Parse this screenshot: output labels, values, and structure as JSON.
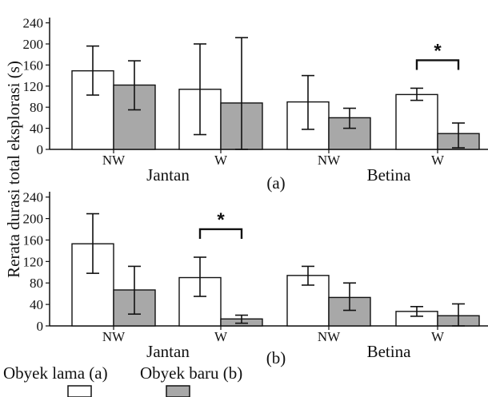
{
  "ylabel": "Rerata durasi total eksplorasi (s)",
  "legend": {
    "series_a": "Obyek lama (a)",
    "series_b": "Obyek baru (b)"
  },
  "colors": {
    "series_a": "#ffffff",
    "series_b": "#a8a8a8",
    "ink": "#111111"
  },
  "chart_data": [
    {
      "type": "bar",
      "panel_label": "(a)",
      "categories": [
        "NW",
        "W",
        "NW",
        "W"
      ],
      "groups": [
        "Jantan",
        "Betina"
      ],
      "yticks": [
        0,
        40,
        80,
        120,
        160,
        200,
        240
      ],
      "ylim": [
        0,
        250
      ],
      "series": [
        {
          "name": "Obyek lama (a)",
          "values": [
            149,
            114,
            90,
            104
          ],
          "err_low": [
            103,
            28,
            38,
            93
          ],
          "err_high": [
            196,
            200,
            140,
            116
          ]
        },
        {
          "name": "Obyek baru (b)",
          "values": [
            122,
            88,
            60,
            30
          ],
          "err_low": [
            75,
            0,
            40,
            3
          ],
          "err_high": [
            168,
            212,
            78,
            50
          ]
        }
      ],
      "significance": [
        {
          "category_index": 3,
          "label": "*"
        }
      ]
    },
    {
      "type": "bar",
      "panel_label": "(b)",
      "categories": [
        "NW",
        "W",
        "NW",
        "W"
      ],
      "groups": [
        "Jantan",
        "Betina"
      ],
      "yticks": [
        0,
        40,
        80,
        120,
        160,
        200,
        240
      ],
      "ylim": [
        0,
        250
      ],
      "series": [
        {
          "name": "Obyek lama (a)",
          "values": [
            153,
            90,
            94,
            27
          ],
          "err_low": [
            98,
            55,
            76,
            18
          ],
          "err_high": [
            209,
            128,
            111,
            36
          ]
        },
        {
          "name": "Obyek baru (b)",
          "values": [
            67,
            13,
            53,
            19
          ],
          "err_low": [
            22,
            5,
            29,
            0
          ],
          "err_high": [
            111,
            20,
            80,
            41
          ]
        }
      ],
      "significance": [
        {
          "category_index": 1,
          "label": "*"
        }
      ]
    }
  ]
}
